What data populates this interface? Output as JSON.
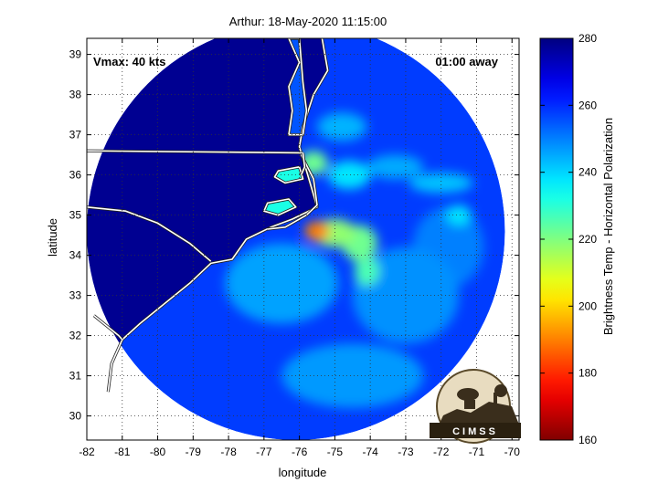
{
  "chart_data": {
    "type": "heatmap",
    "title": "Arthur: 18-May-2020 11:15:00",
    "xlabel": "longitude",
    "ylabel": "latitude",
    "xlim": [
      -82,
      -69.8
    ],
    "ylim": [
      29.4,
      39.4
    ],
    "xticks": [
      -82,
      -81,
      -80,
      -79,
      -78,
      -77,
      -76,
      -75,
      -74,
      -73,
      -72,
      -71,
      -70
    ],
    "yticks": [
      30,
      31,
      32,
      33,
      34,
      35,
      36,
      37,
      38,
      39
    ],
    "grid": true,
    "annotations": {
      "vmax": "Vmax: 40 kts",
      "time_away": "01:00 away"
    },
    "colorbar": {
      "label": "Brightness Temp - Horizontal Polarization",
      "min": 160,
      "max": 280,
      "ticks": [
        160,
        180,
        200,
        220,
        240,
        260,
        280
      ],
      "colormap": "jet"
    },
    "swath": {
      "center_lon": -76.1,
      "center_lat": 34.6,
      "radius_deg_lon": 5.9
    },
    "background_value": 258,
    "features": [
      {
        "lon": -75.5,
        "lat": 34.6,
        "value": 190,
        "sx": 0.35,
        "sy": 0.25
      },
      {
        "lon": -75.0,
        "lat": 34.55,
        "value": 218,
        "sx": 0.6,
        "sy": 0.35
      },
      {
        "lon": -74.3,
        "lat": 34.3,
        "value": 222,
        "sx": 0.5,
        "sy": 0.45
      },
      {
        "lon": -74.1,
        "lat": 33.6,
        "value": 226,
        "sx": 0.35,
        "sy": 0.35
      },
      {
        "lon": -75.6,
        "lat": 36.3,
        "value": 222,
        "sx": 0.4,
        "sy": 0.3
      },
      {
        "lon": -76.5,
        "lat": 35.9,
        "value": 225,
        "sx": 0.5,
        "sy": 0.3
      },
      {
        "lon": -76.8,
        "lat": 35.4,
        "value": 232,
        "sx": 0.6,
        "sy": 0.35
      },
      {
        "lon": -74.6,
        "lat": 36.0,
        "value": 238,
        "sx": 0.6,
        "sy": 0.35
      },
      {
        "lon": -74.8,
        "lat": 37.2,
        "value": 244,
        "sx": 0.7,
        "sy": 0.35
      },
      {
        "lon": -73.3,
        "lat": 36.2,
        "value": 245,
        "sx": 0.8,
        "sy": 0.3
      },
      {
        "lon": -72.0,
        "lat": 35.8,
        "value": 242,
        "sx": 0.9,
        "sy": 0.25
      },
      {
        "lon": -71.5,
        "lat": 35.0,
        "value": 238,
        "sx": 0.35,
        "sy": 0.25
      },
      {
        "lon": -76.5,
        "lat": 33.3,
        "value": 246,
        "sx": 1.6,
        "sy": 1.0
      },
      {
        "lon": -73.0,
        "lat": 33.0,
        "value": 248,
        "sx": 1.5,
        "sy": 1.2
      },
      {
        "lon": -74.5,
        "lat": 31.0,
        "value": 247,
        "sx": 2.0,
        "sy": 0.8
      },
      {
        "lon": -71.8,
        "lat": 34.2,
        "value": 250,
        "sx": 1.0,
        "sy": 1.0
      }
    ],
    "land": [
      [
        -82.1,
        39.6
      ],
      [
        -75.4,
        39.6
      ],
      [
        -75.2,
        38.6
      ],
      [
        -75.6,
        38.0
      ],
      [
        -75.9,
        37.2
      ],
      [
        -76.0,
        36.7
      ],
      [
        -75.9,
        36.4
      ],
      [
        -75.7,
        35.8
      ],
      [
        -75.5,
        35.2
      ],
      [
        -76.2,
        34.9
      ],
      [
        -76.8,
        34.7
      ],
      [
        -77.5,
        34.4
      ],
      [
        -77.9,
        33.9
      ],
      [
        -78.5,
        33.8
      ],
      [
        -79.1,
        33.3
      ],
      [
        -79.8,
        32.8
      ],
      [
        -80.5,
        32.3
      ],
      [
        -81.0,
        31.9
      ],
      [
        -81.3,
        31.3
      ],
      [
        -81.4,
        30.6
      ],
      [
        -81.4,
        29.3
      ],
      [
        -82.1,
        29.3
      ]
    ],
    "state_borders": [
      [
        [
          -82.0,
          36.6
        ],
        [
          -75.9,
          36.55
        ]
      ],
      [
        [
          -82.0,
          35.2
        ],
        [
          -80.9,
          35.1
        ],
        [
          -80.0,
          34.8
        ],
        [
          -79.1,
          34.3
        ],
        [
          -78.5,
          33.85
        ]
      ],
      [
        [
          -81.8,
          32.5
        ],
        [
          -81.1,
          32.0
        ],
        [
          -81.0,
          31.9
        ]
      ],
      [
        [
          -75.9,
          36.55
        ],
        [
          -75.85,
          36.2
        ],
        [
          -75.95,
          36.0
        ]
      ]
    ],
    "lakes": [
      [
        [
          -76.6,
          36.1
        ],
        [
          -76.0,
          36.2
        ],
        [
          -75.9,
          35.9
        ],
        [
          -76.4,
          35.8
        ],
        [
          -76.7,
          35.95
        ]
      ],
      [
        [
          -76.9,
          35.3
        ],
        [
          -76.3,
          35.4
        ],
        [
          -76.1,
          35.2
        ],
        [
          -76.6,
          35.0
        ],
        [
          -77.0,
          35.1
        ]
      ]
    ],
    "outer_banks": [
      [
        -75.95,
        36.5
      ],
      [
        -75.6,
        35.9
      ],
      [
        -75.5,
        35.25
      ],
      [
        -75.8,
        35.0
      ],
      [
        -76.4,
        34.7
      ],
      [
        -76.9,
        34.65
      ]
    ],
    "chesapeake": [
      [
        -76.3,
        39.4
      ],
      [
        -76.0,
        38.8
      ],
      [
        -76.3,
        38.2
      ],
      [
        -76.2,
        37.6
      ],
      [
        -76.3,
        37.0
      ],
      [
        -75.9,
        37.0
      ],
      [
        -75.8,
        37.6
      ],
      [
        -75.9,
        38.3
      ],
      [
        -76.0,
        39.4
      ]
    ],
    "logo_text": "CIMSS"
  }
}
